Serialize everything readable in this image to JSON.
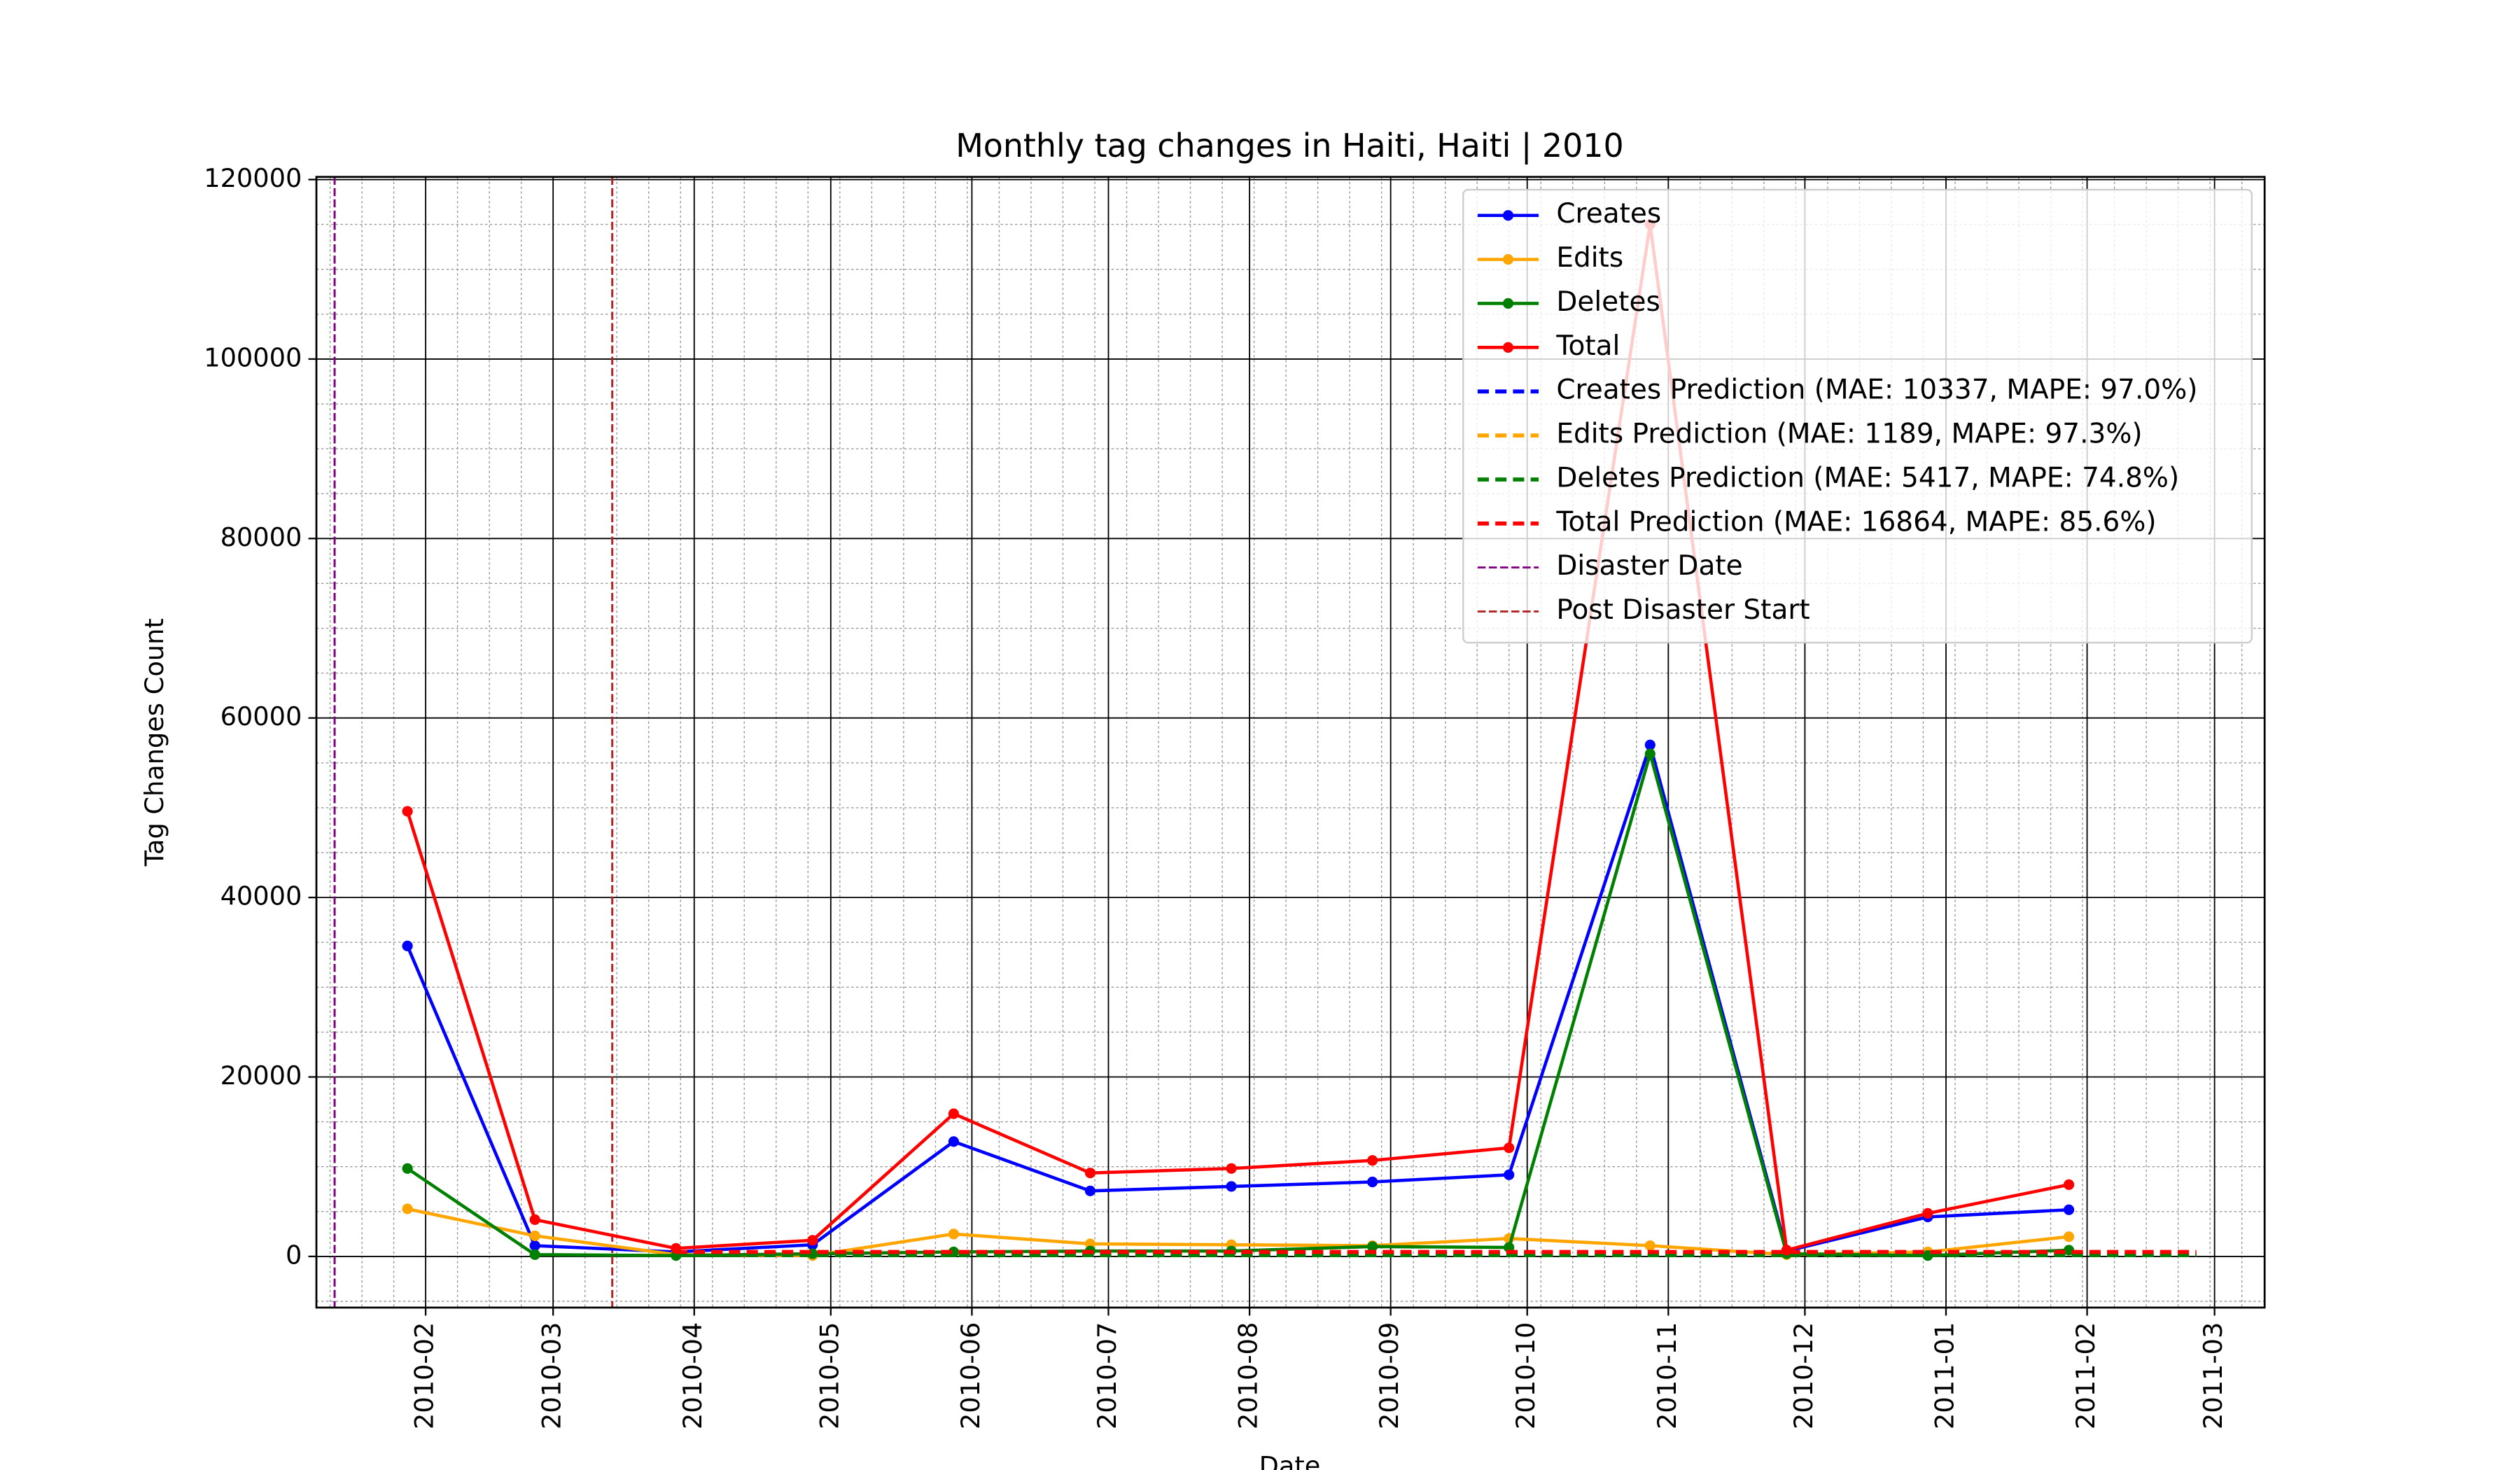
{
  "chart_data": {
    "type": "line",
    "title": "Monthly tag changes in Haiti, Haiti | 2010",
    "x_label": "Date",
    "y_label": "Tag Changes Count",
    "x": [
      "2010-01",
      "2010-02",
      "2010-03",
      "2010-04",
      "2010-05",
      "2010-06",
      "2010-07",
      "2010-08",
      "2010-09",
      "2010-10",
      "2010-11",
      "2010-12",
      "2011-01"
    ],
    "series": [
      {
        "name": "Creates",
        "color": "blue",
        "style": "solid",
        "values": [
          34600,
          1200,
          500,
          1300,
          12800,
          7300,
          7800,
          8300,
          9100,
          57000,
          600,
          4400,
          5200
        ]
      },
      {
        "name": "Edits",
        "color": "orange",
        "style": "solid",
        "values": [
          5300,
          2300,
          200,
          100,
          2500,
          1400,
          1300,
          1200,
          2000,
          1200,
          200,
          500,
          2200
        ]
      },
      {
        "name": "Deletes",
        "color": "green",
        "style": "solid",
        "values": [
          9800,
          200,
          100,
          300,
          500,
          600,
          600,
          1100,
          1000,
          56000,
          300,
          100,
          700
        ]
      },
      {
        "name": "Total",
        "color": "red",
        "style": "solid",
        "values": [
          49600,
          4100,
          900,
          1800,
          15900,
          9300,
          9800,
          10700,
          12100,
          115000,
          700,
          4800,
          8000
        ]
      },
      {
        "name": "Creates Prediction (MAE: 10337, MAPE: 97.0%)",
        "color": "blue",
        "style": "dashed",
        "x": [
          "2010-03",
          "2010-04",
          "2010-05",
          "2010-06",
          "2010-07",
          "2010-08",
          "2010-09",
          "2010-10",
          "2010-11",
          "2010-12",
          "2011-01",
          "2011-02"
        ],
        "values": [
          200,
          200,
          200,
          200,
          200,
          200,
          200,
          200,
          200,
          200,
          200,
          200
        ]
      },
      {
        "name": "Edits Prediction (MAE: 1189, MAPE: 97.3%)",
        "color": "orange",
        "style": "dashed",
        "x": [
          "2010-03",
          "2010-04",
          "2010-05",
          "2010-06",
          "2010-07",
          "2010-08",
          "2010-09",
          "2010-10",
          "2010-11",
          "2010-12",
          "2011-01",
          "2011-02"
        ],
        "values": [
          300,
          300,
          300,
          300,
          300,
          300,
          300,
          300,
          300,
          300,
          300,
          300
        ]
      },
      {
        "name": "Deletes Prediction (MAE: 5417, MAPE: 74.8%)",
        "color": "green",
        "style": "dashed",
        "x": [
          "2010-03",
          "2010-04",
          "2010-05",
          "2010-06",
          "2010-07",
          "2010-08",
          "2010-09",
          "2010-10",
          "2010-11",
          "2010-12",
          "2011-01",
          "2011-02"
        ],
        "values": [
          150,
          150,
          150,
          150,
          150,
          150,
          150,
          150,
          150,
          150,
          150,
          150
        ]
      },
      {
        "name": "Total Prediction (MAE: 16864, MAPE: 85.6%)",
        "color": "red",
        "style": "dashed",
        "x": [
          "2010-03",
          "2010-04",
          "2010-05",
          "2010-06",
          "2010-07",
          "2010-08",
          "2010-09",
          "2010-10",
          "2010-11",
          "2010-12",
          "2011-01",
          "2011-02"
        ],
        "values": [
          500,
          500,
          500,
          500,
          500,
          500,
          500,
          500,
          500,
          500,
          500,
          500
        ]
      }
    ],
    "vlines": [
      {
        "name": "Disaster Date",
        "x": "2010-01-12",
        "color": "purple"
      },
      {
        "name": "Post Disaster Start",
        "x": "2010-03-14",
        "color": "#b22222"
      }
    ],
    "ylim": [
      -5700,
      120300
    ],
    "yticks": [
      0,
      20000,
      40000,
      60000,
      80000,
      100000,
      120000
    ],
    "xticks": [
      "2010-02",
      "2010-03",
      "2010-04",
      "2010-05",
      "2010-06",
      "2010-07",
      "2010-08",
      "2010-09",
      "2010-10",
      "2010-11",
      "2010-12",
      "2011-01",
      "2011-02",
      "2011-03"
    ],
    "grid": true,
    "minor_grid": true,
    "legend": "upper right"
  }
}
